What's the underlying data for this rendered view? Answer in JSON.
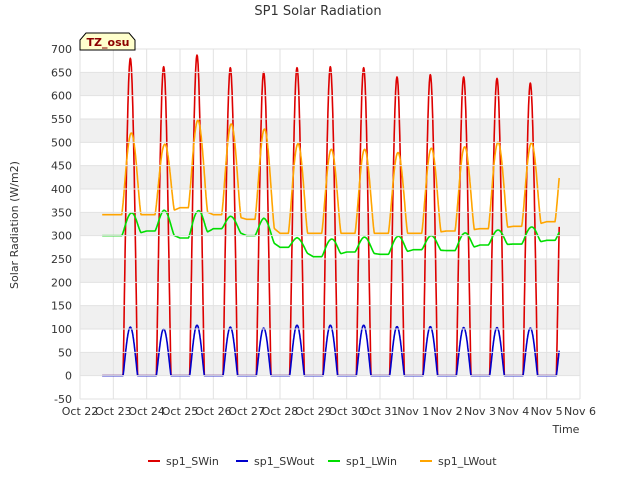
{
  "chart_data": {
    "type": "line",
    "title": "SP1 Solar Radiation",
    "xlabel": "Time",
    "ylabel": "Solar Radiation (W/m2)",
    "tz_label": "TZ_osu",
    "xlim": [
      "2023-10-22",
      "2023-11-06"
    ],
    "ylim": [
      -50,
      700
    ],
    "y_ticks": [
      -50,
      0,
      50,
      100,
      150,
      200,
      250,
      300,
      350,
      400,
      450,
      500,
      550,
      600,
      650,
      700
    ],
    "x_tick_labels": [
      "Oct 22",
      "Oct 23",
      "Oct 24",
      "Oct 25",
      "Oct 26",
      "Oct 27",
      "Oct 28",
      "Oct 29",
      "Oct 30",
      "Oct 31",
      "Nov 1",
      "Nov 2",
      "Nov 3",
      "Nov 4",
      "Nov 5",
      "Nov 6"
    ],
    "grid": true,
    "legend_position": "bottom",
    "data_start": "2023-10-22 16:00",
    "data_end": "2023-11-05 09:00",
    "days": [
      "Oct 23",
      "Oct 24",
      "Oct 25",
      "Oct 26",
      "Oct 27",
      "Oct 28",
      "Oct 29",
      "Oct 30",
      "Oct 31",
      "Nov 1",
      "Nov 2",
      "Nov 3",
      "Nov 4",
      "Nov 5"
    ],
    "series": [
      {
        "name": "sp1_SWin",
        "color": "#dd0000",
        "daily_peak": [
          680,
          662,
          687,
          660,
          650,
          660,
          662,
          660,
          640,
          645,
          640,
          637,
          627,
          608
        ],
        "night_value": 0
      },
      {
        "name": "sp1_SWout",
        "color": "#0000cc",
        "daily_peak": [
          104,
          100,
          108,
          104,
          102,
          108,
          108,
          108,
          105,
          105,
          103,
          103,
          102,
          102
        ],
        "night_value": 0
      },
      {
        "name": "sp1_LWin",
        "color": "#00dd00",
        "daily_night": [
          300,
          310,
          295,
          315,
          300,
          275,
          255,
          265,
          260,
          270,
          268,
          280,
          282,
          290
        ],
        "daily_peak": [
          348,
          355,
          352,
          342,
          338,
          296,
          292,
          297,
          298,
          300,
          305,
          312,
          318,
          322
        ],
        "end_value": 295
      },
      {
        "name": "sp1_LWout",
        "color": "#ffa500",
        "daily_night": [
          345,
          345,
          360,
          345,
          335,
          305,
          305,
          305,
          305,
          305,
          310,
          315,
          320,
          330
        ],
        "daily_peak": [
          520,
          495,
          548,
          540,
          530,
          497,
          485,
          485,
          478,
          487,
          490,
          500,
          498,
          502
        ],
        "end_value": 330
      }
    ]
  }
}
